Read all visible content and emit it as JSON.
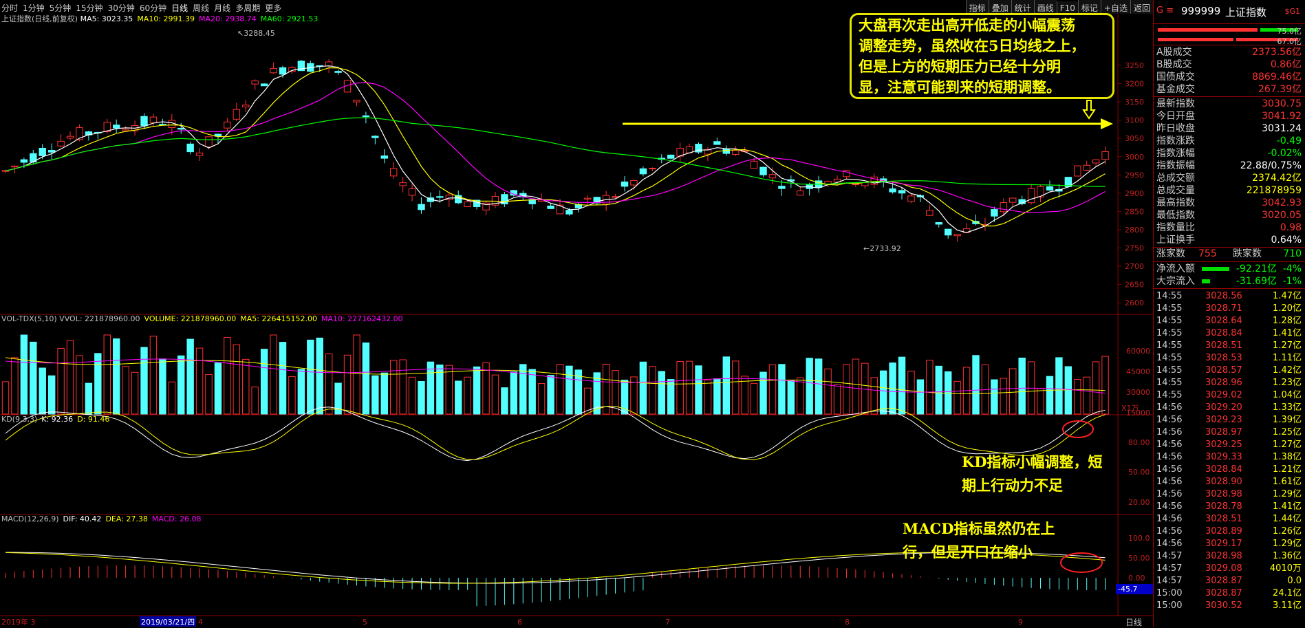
{
  "periods": [
    "分时",
    "1分钟",
    "5分钟",
    "15分钟",
    "30分钟",
    "60分钟",
    "日线",
    "周线",
    "月线",
    "多周期",
    "更多"
  ],
  "active_period": "日线",
  "toolbar": [
    "指标",
    "叠加",
    "统计",
    "画线",
    "F10",
    "标记",
    "+自选",
    "返回"
  ],
  "main_panel": {
    "title": "上证指数(日线,前复权)",
    "ma_labels": [
      {
        "text": "MA5: 3023.35",
        "color": "#ffffff"
      },
      {
        "text": "MA10: 2991.39",
        "color": "#ffff00"
      },
      {
        "text": "MA20: 2938.74",
        "color": "#ff00ff"
      },
      {
        "text": "MA60: 2921.53",
        "color": "#00ff00"
      }
    ],
    "high_label": "3288.45",
    "low_label": "2733.92",
    "y_ticks": [
      "3250",
      "3200",
      "3150",
      "3100",
      "3050",
      "3000",
      "2950",
      "2900",
      "2850",
      "2800",
      "2750",
      "2700",
      "2650",
      "2600"
    ],
    "annotation": "大盘再次走出高开低走的小幅震荡调整走势，虽然收在5日均线之上，但是上方的短期压力已经十分明显，注意可能到来的短期调整。",
    "annotation_lines": [
      "大盘再次走出高开低走的小幅震荡",
      "调整走势，虽然收在5日均线之上，",
      "但是上方的短期压力已经十分明",
      "显，注意可能到来的短期调整。"
    ]
  },
  "volume_panel": {
    "labels": [
      {
        "text": "VOL-TDX(5,10) VVOL: 221878960.00",
        "color": "#c0c0c0"
      },
      {
        "text": "VOLUME: 221878960.00",
        "color": "#ffff00"
      },
      {
        "text": "MA5: 226415152.00",
        "color": "#ffff00"
      },
      {
        "text": "MA10: 227162432.00",
        "color": "#ff00ff"
      }
    ],
    "y_ticks": [
      "60000",
      "45000",
      "30000",
      "15000"
    ],
    "unit": "X1万"
  },
  "kd_panel": {
    "labels": [
      {
        "text": "KD(9,3,3)",
        "color": "#c0c0c0"
      },
      {
        "text": "K: 92.36",
        "color": "#ffffff"
      },
      {
        "text": "D: 91.46",
        "color": "#ffff00"
      }
    ],
    "y_ticks": [
      "80.00",
      "50.00",
      "20.00"
    ],
    "annotation_lines": [
      "KD指标小幅调整，短",
      "期上行动力不足"
    ]
  },
  "macd_panel": {
    "labels": [
      {
        "text": "MACD(12,26,9)",
        "color": "#c0c0c0"
      },
      {
        "text": "DIF: 40.42",
        "color": "#ffffff"
      },
      {
        "text": "DEA: 27.38",
        "color": "#ffff00"
      },
      {
        "text": "MACD: 26.08",
        "color": "#ff00ff"
      }
    ],
    "y_ticks": [
      "100.0",
      "50.00",
      "0.00"
    ],
    "cursor_value": "-45.7",
    "annotation_lines": [
      "MACD指标虽然仍在上",
      "行，但是开口在缩小"
    ]
  },
  "x_axis": {
    "labels": [
      "2019年 3",
      "2019/03/21/四",
      "4",
      "5",
      "6",
      "7",
      "8",
      "9"
    ],
    "right_label": "日线"
  },
  "sidebar": {
    "code": "999999",
    "name": "上证指数",
    "tag": "$G1",
    "bar_values": [
      "75.0亿",
      "67.0亿"
    ],
    "turnover": [
      {
        "k": "A股成交",
        "v": "2373.56亿",
        "c": "#ff3333"
      },
      {
        "k": "B股成交",
        "v": "0.86亿",
        "c": "#ff3333"
      },
      {
        "k": "国债成交",
        "v": "8869.46亿",
        "c": "#ff3333"
      },
      {
        "k": "基金成交",
        "v": "267.39亿",
        "c": "#ff3333"
      }
    ],
    "stats": [
      {
        "k": "最新指数",
        "v": "3030.75",
        "c": "#ff3333"
      },
      {
        "k": "今日开盘",
        "v": "3041.92",
        "c": "#ff3333"
      },
      {
        "k": "昨日收盘",
        "v": "3031.24",
        "c": "#ffffff"
      },
      {
        "k": "指数涨跌",
        "v": "-0.49",
        "c": "#00ff00"
      },
      {
        "k": "指数涨幅",
        "v": "-0.02%",
        "c": "#00ff00"
      },
      {
        "k": "指数振幅",
        "v": "22.88/0.75%",
        "c": "#ffffff"
      },
      {
        "k": "总成交额",
        "v": "2374.42亿",
        "c": "#ffff00"
      },
      {
        "k": "总成交量",
        "v": "221878959",
        "c": "#ffff00"
      },
      {
        "k": "最高指数",
        "v": "3042.93",
        "c": "#ff3333"
      },
      {
        "k": "最低指数",
        "v": "3020.05",
        "c": "#ff3333"
      },
      {
        "k": "指数量比",
        "v": "0.98",
        "c": "#ff3333"
      },
      {
        "k": "上证换手",
        "v": "0.64%",
        "c": "#ffffff"
      }
    ],
    "up_label": "涨家数",
    "up_count": "755",
    "down_label": "跌家数",
    "down_count": "710",
    "flows": [
      {
        "k": "净流入额",
        "v": "-92.21亿",
        "p": "-4%"
      },
      {
        "k": "大宗流入",
        "v": "-31.69亿",
        "p": "-1%"
      }
    ],
    "ticks": [
      [
        "14:55",
        "3028.56",
        "1.47亿"
      ],
      [
        "14:55",
        "3028.71",
        "1.20亿"
      ],
      [
        "14:55",
        "3028.64",
        "1.28亿"
      ],
      [
        "14:55",
        "3028.84",
        "1.41亿"
      ],
      [
        "14:55",
        "3028.51",
        "1.27亿"
      ],
      [
        "14:55",
        "3028.53",
        "1.11亿"
      ],
      [
        "14:55",
        "3028.57",
        "1.42亿"
      ],
      [
        "14:55",
        "3028.96",
        "1.23亿"
      ],
      [
        "14:55",
        "3029.02",
        "1.04亿"
      ],
      [
        "14:56",
        "3029.20",
        "1.33亿"
      ],
      [
        "14:56",
        "3029.23",
        "1.39亿"
      ],
      [
        "14:56",
        "3028.97",
        "1.25亿"
      ],
      [
        "14:56",
        "3029.25",
        "1.27亿"
      ],
      [
        "14:56",
        "3029.33",
        "1.38亿"
      ],
      [
        "14:56",
        "3028.84",
        "1.21亿"
      ],
      [
        "14:56",
        "3028.90",
        "1.61亿"
      ],
      [
        "14:56",
        "3028.98",
        "1.29亿"
      ],
      [
        "14:56",
        "3028.78",
        "1.41亿"
      ],
      [
        "14:56",
        "3028.51",
        "1.44亿"
      ],
      [
        "14:56",
        "3028.89",
        "1.26亿"
      ],
      [
        "14:56",
        "3029.17",
        "1.29亿"
      ],
      [
        "14:57",
        "3028.98",
        "1.36亿"
      ],
      [
        "14:57",
        "3029.08",
        "4010万"
      ],
      [
        "14:57",
        "3028.87",
        "0.0"
      ],
      [
        "15:00",
        "3028.87",
        "24.1亿"
      ],
      [
        "15:00",
        "3030.52",
        "3.11亿"
      ]
    ]
  }
}
